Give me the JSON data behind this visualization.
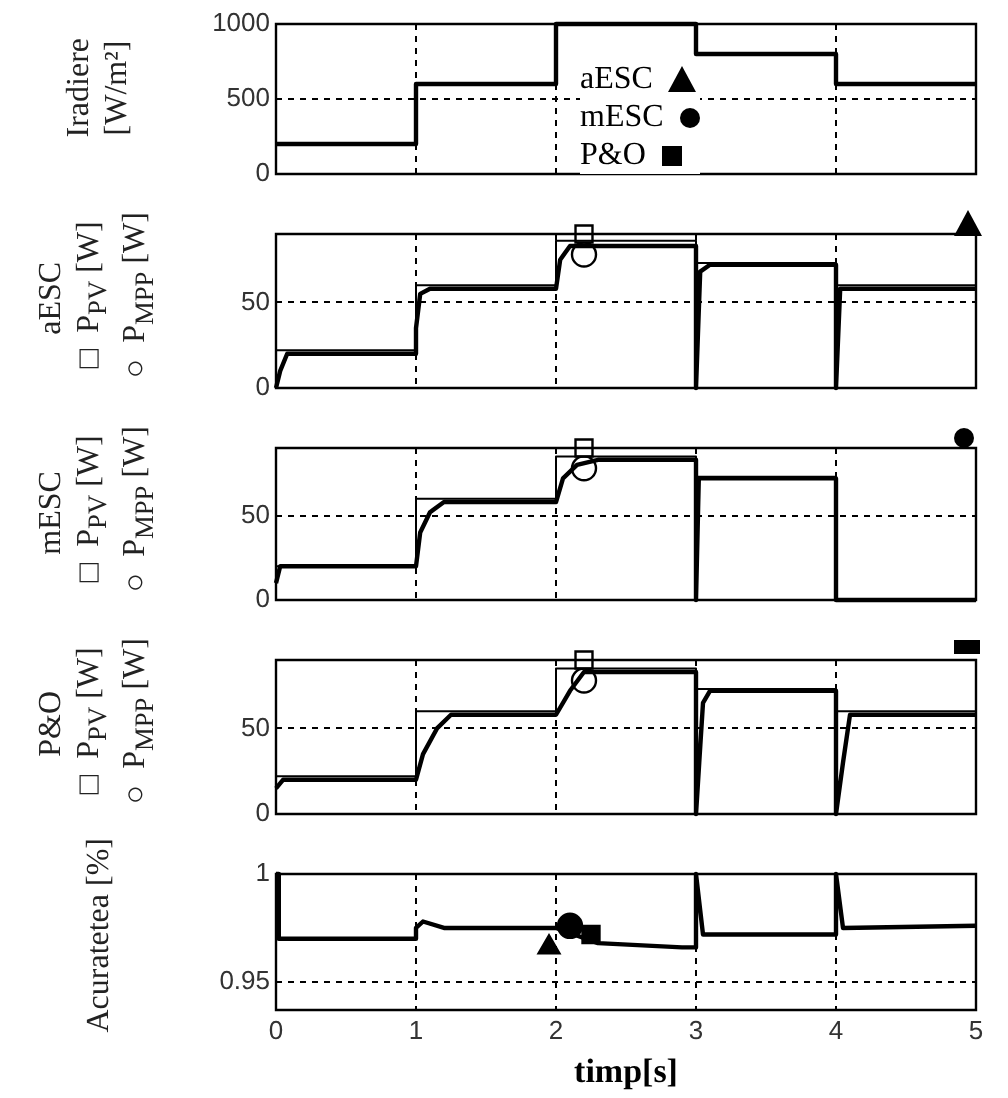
{
  "chart_data": [
    {
      "type": "line",
      "ylabel": "Iradiere\n[W/m²]",
      "xlim": [
        0,
        5
      ],
      "xticks": [
        0,
        1,
        2,
        3,
        4,
        5
      ],
      "ylim": [
        0,
        1000
      ],
      "yticks": [
        0,
        500,
        1000
      ],
      "grid": true,
      "tick_labels": "y",
      "marker": "none",
      "line_style": "solid",
      "series": [
        {
          "color": "#000000",
          "x": [
            0,
            1,
            1,
            2,
            2,
            3,
            3,
            4,
            4,
            5
          ],
          "values": [
            200,
            200,
            600,
            600,
            1000,
            1000,
            800,
            800,
            600,
            600
          ]
        }
      ]
    },
    {
      "type": "line",
      "ylabel": "aESC\n□ P$_{PV}$ [W]\n○ P$_{MPP}$ [W]",
      "xlim": [
        0,
        5
      ],
      "xticks": [
        0,
        1,
        2,
        3,
        4,
        5
      ],
      "ylim": [
        0,
        90
      ],
      "yticks": [
        0,
        50
      ],
      "grid": true,
      "tick_labels": "y",
      "marker": "none",
      "line_style": "solid",
      "series": [
        {
          "color": "#000000",
          "x": [
            0,
            0.03,
            0.08,
            1,
            1,
            1.03,
            1.1,
            2,
            2.03,
            2.1,
            3,
            3,
            3.03,
            3.1,
            4,
            4,
            4.03,
            5
          ],
          "values": [
            0,
            10,
            20,
            20,
            35,
            55,
            58,
            58,
            75,
            83,
            83,
            0,
            68,
            72,
            72,
            0,
            58,
            58
          ]
        },
        {
          "color": "#000000",
          "x": [
            0,
            1,
            1,
            2,
            2,
            3,
            3,
            4,
            4,
            5
          ],
          "values": [
            22,
            22,
            60,
            60,
            86,
            86,
            73,
            73,
            60,
            60
          ]
        },
        {
          "type": "scatter",
          "marker": "square",
          "color": "#000000",
          "x": [
            2.2
          ],
          "values": [
            90
          ]
        },
        {
          "type": "scatter",
          "marker": "circle",
          "color": "#000000",
          "x": [
            2.2
          ],
          "values": [
            78
          ]
        }
      ]
    },
    {
      "type": "line",
      "ylabel": "mESC\n□ P$_{PV}$ [W]\n○ P$_{MPP}$ [W]",
      "xlim": [
        0,
        5
      ],
      "xticks": [
        0,
        1,
        2,
        3,
        4,
        5
      ],
      "ylim": [
        0,
        90
      ],
      "yticks": [
        0,
        50
      ],
      "grid": true,
      "tick_labels": "y",
      "marker": "none",
      "line_style": "solid",
      "series": [
        {
          "color": "#000000",
          "x": [
            0,
            0.03,
            1,
            1.03,
            1.1,
            1.2,
            2,
            2.05,
            2.15,
            2.3,
            3,
            3,
            3.02,
            4,
            4,
            5
          ],
          "values": [
            10,
            20,
            20,
            40,
            52,
            58,
            58,
            72,
            80,
            83,
            83,
            0,
            72,
            72,
            0,
            0
          ]
        },
        {
          "color": "#000000",
          "x": [
            0,
            1,
            1,
            2,
            2,
            3,
            3,
            4
          ],
          "values": [
            20,
            20,
            60,
            60,
            85,
            85,
            73,
            73
          ]
        },
        {
          "type": "scatter",
          "marker": "square",
          "color": "#000000",
          "x": [
            2.2
          ],
          "values": [
            90
          ]
        },
        {
          "type": "scatter",
          "marker": "circle",
          "color": "#000000",
          "x": [
            2.2
          ],
          "values": [
            78
          ]
        }
      ]
    },
    {
      "type": "line",
      "ylabel": "P&O\n□ P$_{PV}$ [W]\n○ P$_{MPP}$ [W]",
      "xlim": [
        0,
        5
      ],
      "xticks": [
        0,
        1,
        2,
        3,
        4,
        5
      ],
      "ylim": [
        0,
        90
      ],
      "yticks": [
        0,
        50
      ],
      "grid": true,
      "tick_labels": "y",
      "marker": "none",
      "line_style": "solid",
      "series": [
        {
          "color": "#000000",
          "x": [
            0,
            0.05,
            1,
            1.05,
            1.15,
            1.25,
            2,
            2.1,
            2.2,
            3,
            3,
            3.05,
            3.1,
            4,
            4,
            4.05,
            4.1,
            5
          ],
          "values": [
            15,
            20,
            20,
            35,
            50,
            58,
            58,
            72,
            83,
            83,
            0,
            65,
            72,
            72,
            0,
            30,
            58,
            58
          ]
        },
        {
          "color": "#000000",
          "x": [
            0,
            1,
            1,
            2,
            2,
            3,
            3,
            4,
            4,
            5
          ],
          "values": [
            22,
            22,
            60,
            60,
            85,
            85,
            73,
            73,
            60,
            60
          ]
        },
        {
          "type": "scatter",
          "marker": "square",
          "color": "#000000",
          "x": [
            2.2
          ],
          "values": [
            90
          ]
        },
        {
          "type": "scatter",
          "marker": "circle",
          "color": "#000000",
          "x": [
            2.2
          ],
          "values": [
            78
          ]
        }
      ]
    },
    {
      "type": "line",
      "ylabel": "Acuratetea [%]",
      "xlabel": "timp[s]",
      "xlim": [
        0,
        5
      ],
      "xticks": [
        0,
        1,
        2,
        3,
        4,
        5
      ],
      "ylim": [
        0.937,
        1
      ],
      "yticks": [
        0.95,
        1
      ],
      "grid": true,
      "legend": "top",
      "marker": "none",
      "line_style": "solid",
      "series": [
        {
          "color": "#000000",
          "x": [
            0,
            0.02,
            0.02,
            1,
            1,
            1.05,
            1.2,
            2,
            2.3,
            2.9,
            3,
            3,
            3.05,
            3.1,
            4,
            4,
            4.05,
            5
          ],
          "values": [
            1,
            1,
            0.97,
            0.97,
            0.975,
            0.978,
            0.975,
            0.975,
            0.968,
            0.966,
            0.966,
            1,
            0.972,
            0.972,
            0.972,
            1,
            0.975,
            0.976
          ]
        },
        {
          "type": "scatter",
          "name": "aESC",
          "marker": "triangle",
          "color": "#000000",
          "x": [
            1.95
          ],
          "values": [
            0.966
          ]
        },
        {
          "type": "scatter",
          "name": "mESC",
          "marker": "circle",
          "color": "#000000",
          "x": [
            2.1
          ],
          "values": [
            0.976
          ]
        },
        {
          "type": "scatter",
          "name": "P&O",
          "marker": "square",
          "color": "#000000",
          "x": [
            2.25
          ],
          "values": [
            0.972
          ]
        }
      ]
    }
  ]
}
